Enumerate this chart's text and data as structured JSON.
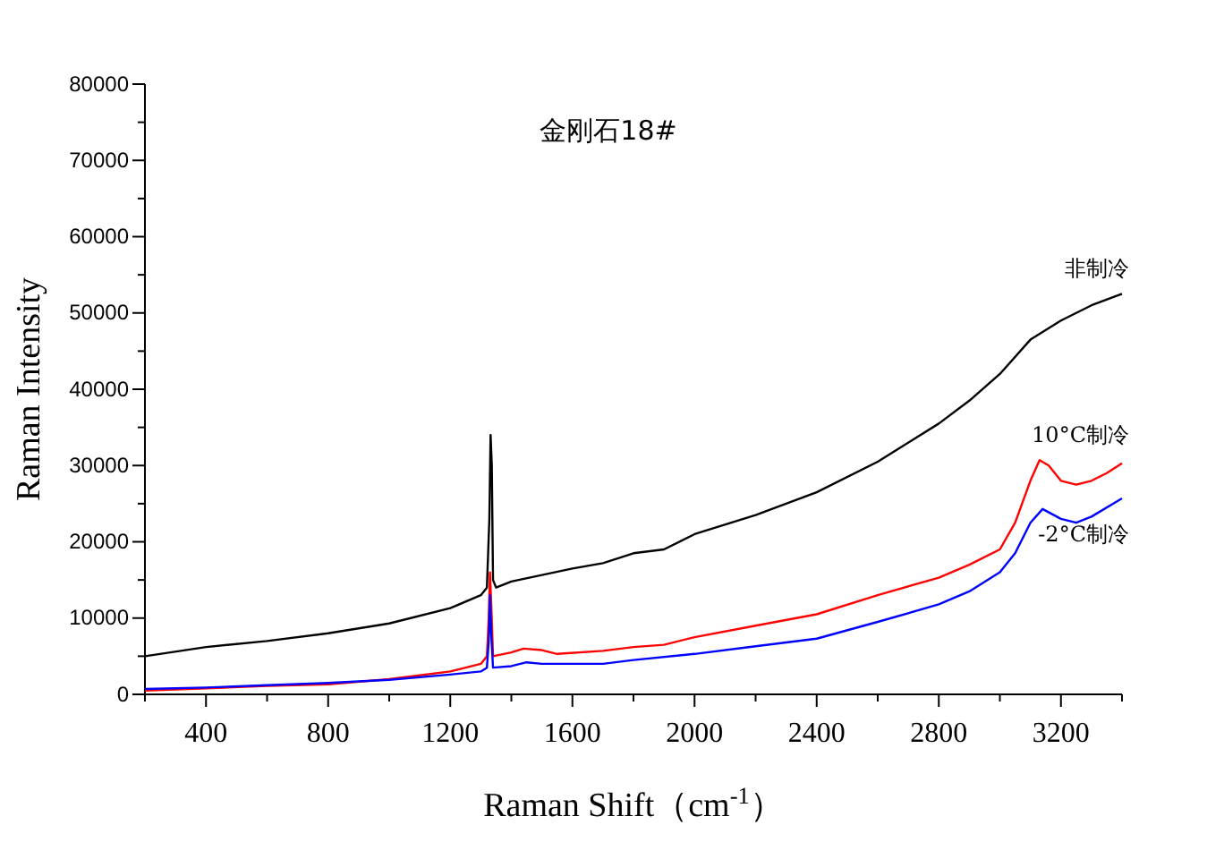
{
  "chart_data": {
    "type": "line",
    "title": "金刚石18#",
    "xlabel": "Raman Shift（cm$^{-1}$）",
    "ylabel": "Raman Intensity",
    "xlim": [
      200,
      3400
    ],
    "ylim": [
      0,
      80000
    ],
    "xticks": [
      {
        "value": 200,
        "label": null
      },
      400,
      {
        "value": 600,
        "label": null
      },
      800,
      {
        "value": 1000,
        "label": null
      },
      1200,
      {
        "value": 1400,
        "label": null
      },
      1600,
      {
        "value": 1800,
        "label": null
      },
      2000,
      {
        "value": 2200,
        "label": null
      },
      2400,
      {
        "value": 2600,
        "label": null
      },
      2800,
      {
        "value": 3000,
        "label": null
      },
      3200,
      {
        "value": 3400,
        "label": null
      }
    ],
    "yticks": [
      0,
      {
        "value": 5000,
        "label": null
      },
      10000,
      {
        "value": 15000,
        "label": null
      },
      20000,
      {
        "value": 25000,
        "label": null
      },
      30000,
      {
        "value": 35000,
        "label": null
      },
      40000,
      {
        "value": 45000,
        "label": null
      },
      50000,
      {
        "value": 55000,
        "label": null
      },
      60000,
      {
        "value": 65000,
        "label": null
      },
      70000,
      {
        "value": 75000,
        "label": null
      },
      80000
    ],
    "grid": false,
    "legend": false,
    "marker": "none",
    "line_style": "solid",
    "series": [
      {
        "name": "非制冷",
        "color": "#000000",
        "x": [
          200,
          400,
          600,
          800,
          1000,
          1200,
          1300,
          1320,
          1328,
          1332,
          1336,
          1340,
          1350,
          1400,
          1600,
          1700,
          1800,
          1900,
          2000,
          2200,
          2400,
          2600,
          2800,
          2900,
          3000,
          3100,
          3200,
          3300,
          3400
        ],
        "values": [
          5000,
          6200,
          7000,
          8000,
          9300,
          11300,
          13000,
          14000,
          23000,
          34000,
          30000,
          15000,
          14000,
          14800,
          16500,
          17200,
          18500,
          19000,
          21000,
          23500,
          26500,
          30500,
          35500,
          38500,
          42000,
          46500,
          49000,
          51000,
          52500
        ]
      },
      {
        "name": "10°C制冷",
        "color": "#ff0000",
        "x": [
          200,
          400,
          600,
          800,
          1000,
          1200,
          1300,
          1320,
          1326,
          1330,
          1334,
          1340,
          1400,
          1440,
          1500,
          1550,
          1700,
          1800,
          1900,
          2000,
          2200,
          2400,
          2600,
          2800,
          2900,
          3000,
          3050,
          3100,
          3130,
          3160,
          3200,
          3250,
          3300,
          3350,
          3400
        ],
        "values": [
          500,
          800,
          1100,
          1300,
          2000,
          3000,
          4000,
          5000,
          10000,
          16000,
          12000,
          5000,
          5500,
          6000,
          5800,
          5300,
          5700,
          6200,
          6500,
          7500,
          9000,
          10500,
          13000,
          15300,
          17000,
          19000,
          22500,
          28000,
          30700,
          30000,
          28000,
          27500,
          28000,
          29000,
          30300
        ]
      },
      {
        "name": "-2°C制冷",
        "color": "#0000ff",
        "x": [
          200,
          400,
          600,
          800,
          1000,
          1200,
          1300,
          1320,
          1326,
          1330,
          1334,
          1340,
          1400,
          1450,
          1500,
          1700,
          1800,
          2000,
          2200,
          2400,
          2600,
          2800,
          2900,
          3000,
          3050,
          3100,
          3140,
          3200,
          3250,
          3300,
          3400
        ],
        "values": [
          700,
          900,
          1200,
          1500,
          1900,
          2600,
          3000,
          3500,
          7000,
          13000,
          8000,
          3500,
          3700,
          4200,
          4000,
          4000,
          4500,
          5300,
          6300,
          7300,
          9500,
          11800,
          13500,
          16000,
          18500,
          22500,
          24300,
          23000,
          22500,
          23300,
          25700
        ]
      }
    ]
  }
}
